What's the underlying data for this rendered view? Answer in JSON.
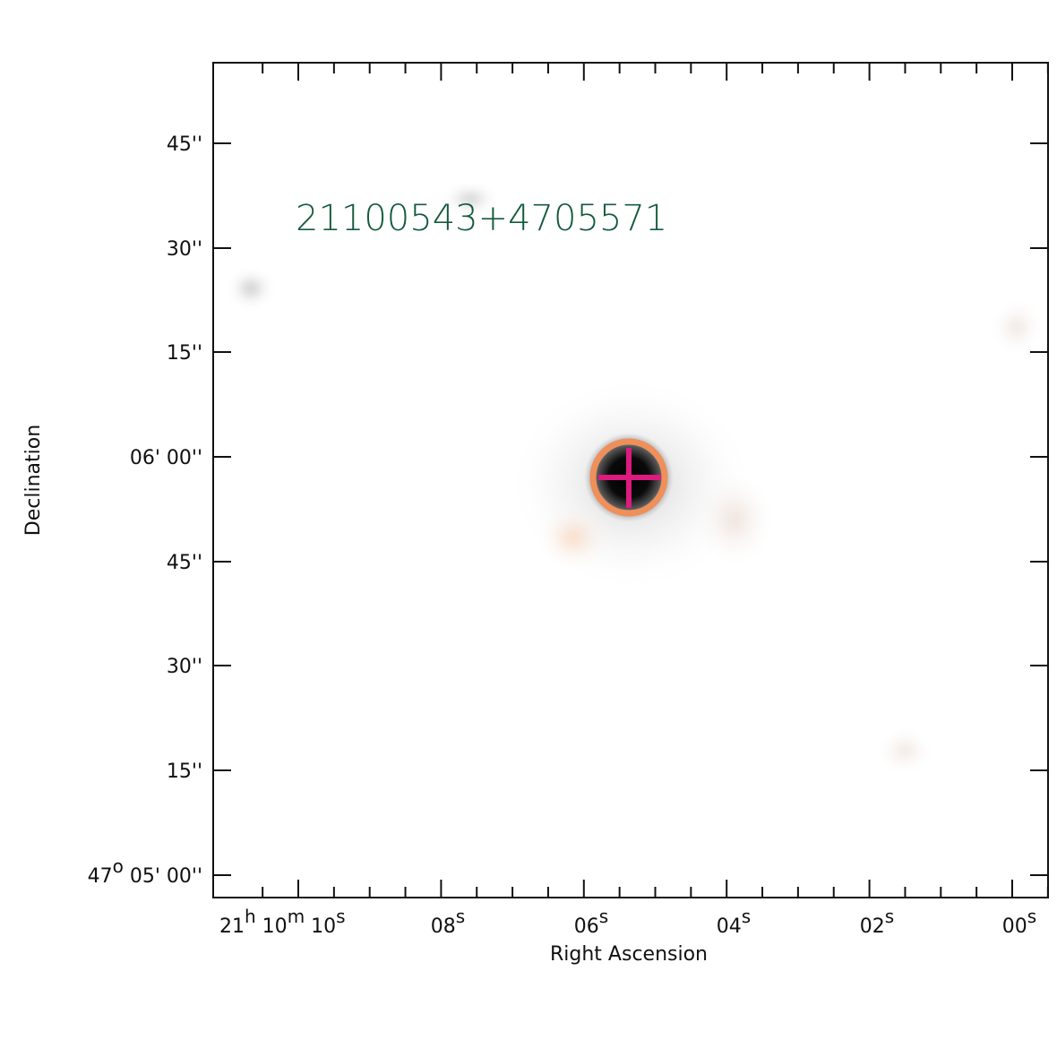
{
  "source_label": "21100543+4705571",
  "axes": {
    "xlabel": "Right Ascension",
    "ylabel": "Declination"
  },
  "ra_ticks": [
    {
      "value": "21h 10m 10s",
      "parts": [
        {
          "t": "21"
        },
        {
          "t": "h",
          "sup": true
        },
        {
          "t": " 10"
        },
        {
          "t": "m",
          "sup": true
        },
        {
          "t": " 10"
        },
        {
          "t": "s",
          "sup": true
        }
      ]
    },
    {
      "value": "08s",
      "parts": [
        {
          "t": "08"
        },
        {
          "t": "s",
          "sup": true
        }
      ]
    },
    {
      "value": "06s",
      "parts": [
        {
          "t": "06"
        },
        {
          "t": "s",
          "sup": true
        }
      ]
    },
    {
      "value": "04s",
      "parts": [
        {
          "t": "04"
        },
        {
          "t": "s",
          "sup": true
        }
      ]
    },
    {
      "value": "02s",
      "parts": [
        {
          "t": "02"
        },
        {
          "t": "s",
          "sup": true
        }
      ]
    },
    {
      "value": "00s",
      "parts": [
        {
          "t": "00"
        },
        {
          "t": "s",
          "sup": true
        }
      ]
    }
  ],
  "dec_ticks": [
    {
      "value": "45''",
      "parts": [
        {
          "t": "45''"
        }
      ]
    },
    {
      "value": "30''",
      "parts": [
        {
          "t": "30''"
        }
      ]
    },
    {
      "value": "15''",
      "parts": [
        {
          "t": "15''"
        }
      ]
    },
    {
      "value": "06' 00''",
      "parts": [
        {
          "t": "06' 00''"
        }
      ]
    },
    {
      "value": "45''",
      "parts": [
        {
          "t": "45''"
        }
      ]
    },
    {
      "value": "30''",
      "parts": [
        {
          "t": "30''"
        }
      ]
    },
    {
      "value": "15''",
      "parts": [
        {
          "t": "15''"
        }
      ]
    },
    {
      "value": "47o 05' 00''",
      "parts": [
        {
          "t": "47"
        },
        {
          "t": "o",
          "sup": true
        },
        {
          "t": " 05' 00''"
        }
      ]
    }
  ],
  "colors": {
    "label": "#145a3c",
    "circle": "#ef8f5a",
    "cross": "#dc1a7f",
    "frame": "#111111"
  },
  "markers": {
    "circle": "source-aperture",
    "cross": "source-position"
  }
}
